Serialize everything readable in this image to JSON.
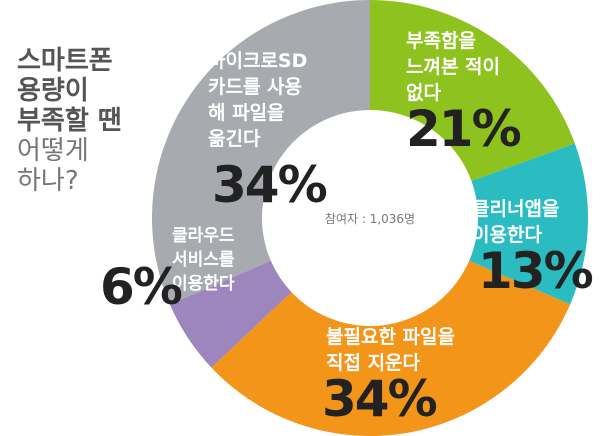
{
  "header": {
    "title_lines": [
      "스마트폰",
      "용량이",
      "부족할 땐"
    ],
    "subtitle_lines": [
      "어떻게",
      "하나?"
    ]
  },
  "chart_data": {
    "type": "pie",
    "center_label": "참여자 : 1,036명",
    "slices": [
      {
        "label_lines": [
          "부족함을",
          "느껴본 적이",
          "없다"
        ],
        "value": 21,
        "display": "21%",
        "color": "#8dc21f"
      },
      {
        "label_lines": [
          "클리너앱을",
          "이용한다"
        ],
        "value": 13,
        "display": "13%",
        "color": "#2bbcc1"
      },
      {
        "label_lines": [
          "불필요한 파일을",
          "직접 지운다"
        ],
        "value": 34,
        "display": "34%",
        "color": "#f29519"
      },
      {
        "label_lines": [
          "클라우드",
          "서비스를",
          "이용한다"
        ],
        "value": 6,
        "display": "6%",
        "color": "#9c86bd"
      },
      {
        "label_lines": [
          "마이크로SD",
          "카드를 사용",
          "해 파일을",
          "옮긴다"
        ],
        "value": 34,
        "display": "34%",
        "color": "#a7abaf"
      }
    ]
  }
}
